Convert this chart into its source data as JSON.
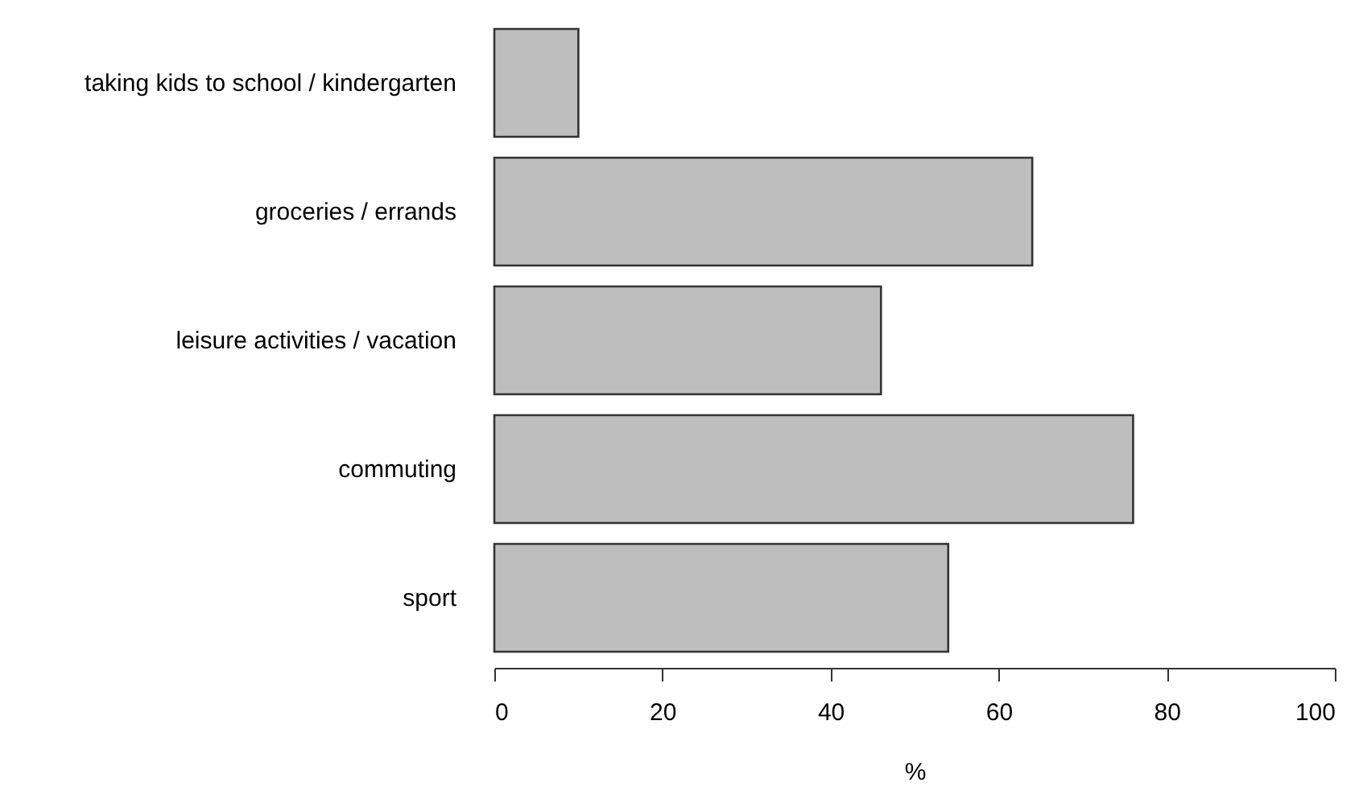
{
  "chart_data": {
    "type": "bar",
    "orientation": "horizontal",
    "xlabel": "%",
    "categories": [
      "taking kids to school / kindergarten",
      "groceries / errands",
      "leisure activities / vacation",
      "commuting",
      "sport"
    ],
    "values": [
      10,
      64,
      46,
      76,
      54
    ],
    "color": "#bebebe",
    "xlim": [
      0,
      100
    ],
    "xticks": [
      0,
      20,
      40,
      60,
      80,
      100
    ],
    "grid": false
  }
}
